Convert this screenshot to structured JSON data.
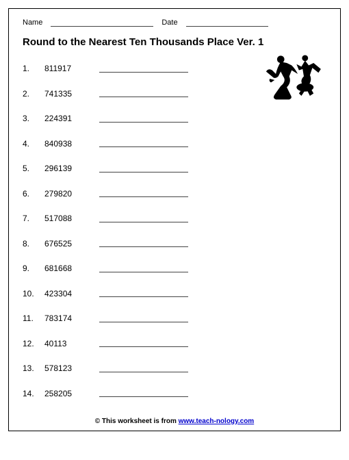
{
  "header": {
    "name_label": "Name",
    "date_label": "Date",
    "name_blank_width": 150,
    "date_blank_width": 120
  },
  "title": "Round to the Nearest Ten Thousands Place Ver. 1",
  "problems": [
    {
      "n": "1.",
      "value": "811917"
    },
    {
      "n": "2.",
      "value": "741335"
    },
    {
      "n": "3.",
      "value": "224391"
    },
    {
      "n": "4.",
      "value": "840938"
    },
    {
      "n": "5.",
      "value": "296139"
    },
    {
      "n": "6.",
      "value": "279820"
    },
    {
      "n": "7.",
      "value": "517088"
    },
    {
      "n": "8.",
      "value": "676525"
    },
    {
      "n": "9.",
      "value": "681668"
    },
    {
      "n": "10.",
      "value": "423304"
    },
    {
      "n": "11.",
      "value": "783174"
    },
    {
      "n": "12.",
      "value": "40113"
    },
    {
      "n": "13.",
      "value": "578123"
    },
    {
      "n": "14.",
      "value": "258205"
    }
  ],
  "footer": {
    "prefix": "© This worksheet is from ",
    "link_text": "www.teach-nology.com"
  },
  "clipart": {
    "name": "dancers-silhouette",
    "color": "#000000"
  }
}
